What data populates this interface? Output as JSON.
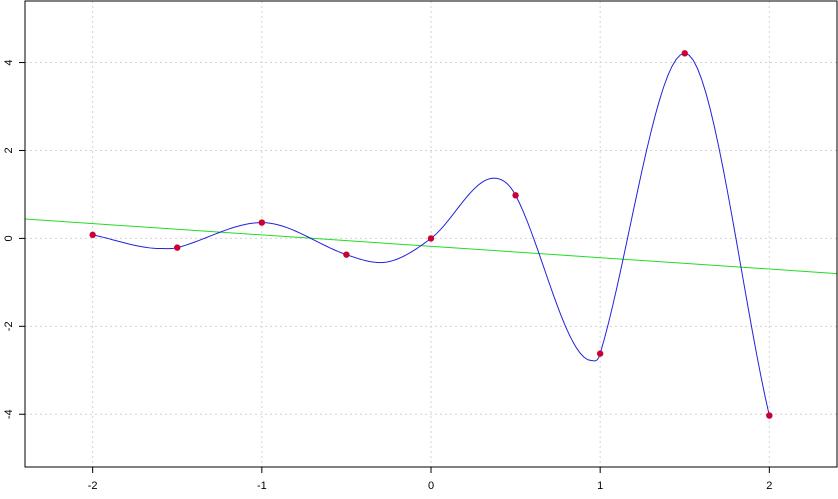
{
  "chart_data": {
    "type": "line",
    "title": "",
    "xlabel": "",
    "ylabel": "",
    "xlim": [
      -2.4,
      2.4
    ],
    "ylim": [
      -5.2,
      5.4
    ],
    "grid": true,
    "x_ticks": [
      -2,
      -1,
      0,
      1,
      2
    ],
    "y_ticks": [
      -4,
      -2,
      0,
      2,
      4
    ],
    "x_tick_labels": [
      "-2",
      "-1",
      "0",
      "1",
      "2"
    ],
    "y_tick_labels": [
      "-4",
      "-2",
      "0",
      "2",
      "4"
    ],
    "colors": {
      "points": "#cc0033",
      "spline": "#2222dd",
      "fit_line": "#22dd22",
      "grid": "#d3d3d3"
    },
    "series": [
      {
        "type": "scatter",
        "x": [
          -2,
          -1.5,
          -1,
          -0.5,
          0,
          0.5,
          1,
          1.5,
          2
        ],
        "y": [
          0.08,
          -0.21,
          0.36,
          -0.37,
          0.0,
          0.98,
          -2.62,
          4.21,
          -4.03
        ]
      },
      {
        "type": "line",
        "x": [
          -2,
          -1.6,
          -1.5,
          -1.0,
          -0.5,
          -0.3,
          0,
          0.37,
          0.5,
          0.95,
          1.0,
          1.5,
          2.0
        ],
        "y": [
          0.08,
          -0.23,
          -0.21,
          0.36,
          -0.37,
          -0.55,
          0.0,
          1.37,
          0.98,
          -2.78,
          -2.62,
          4.21,
          -4.03
        ]
      },
      {
        "type": "line",
        "x": [
          -2.4,
          2.4
        ],
        "y": [
          0.44,
          -0.8
        ]
      }
    ]
  }
}
